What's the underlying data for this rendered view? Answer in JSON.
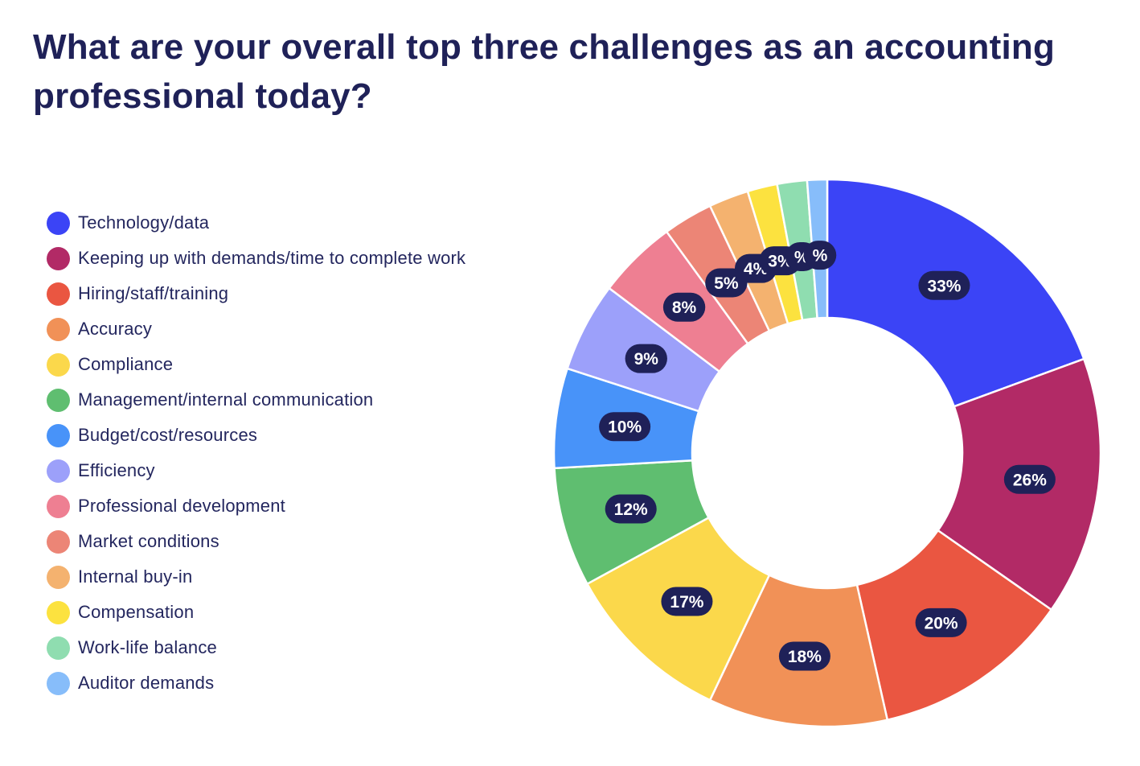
{
  "chart_data": {
    "type": "pie",
    "title": "What are your overall top three challenges as an accounting professional today?",
    "donut": true,
    "legend_position": "left",
    "categories": [
      "Technology/data",
      "Keeping up with demands/time to complete work",
      "Hiring/staff/training",
      "Accuracy",
      "Compliance",
      "Management/internal communication",
      "Budget/cost/resources",
      "Efficiency",
      "Professional development",
      "Market conditions",
      "Internal buy-in",
      "Compensation",
      "Work-life balance",
      "Auditor demands"
    ],
    "values": [
      33,
      26,
      20,
      18,
      17,
      12,
      10,
      9,
      8,
      5,
      4,
      3,
      3,
      2
    ],
    "value_labels": [
      "33%",
      "26%",
      "20%",
      "18%",
      "17%",
      "12%",
      "10%",
      "9%",
      "8%",
      "5%",
      "4%",
      "3%",
      "%",
      "%"
    ],
    "colors": [
      "#3b44f6",
      "#b22a66",
      "#ea5641",
      "#f19157",
      "#fbd84b",
      "#5fbe70",
      "#4893f9",
      "#9ca0fa",
      "#ee7f92",
      "#ec8576",
      "#f4b26f",
      "#fce23f",
      "#8fddb0",
      "#87bdfa"
    ],
    "label_bg_color": "#1f2158",
    "label_text_color": "#ffffff"
  }
}
